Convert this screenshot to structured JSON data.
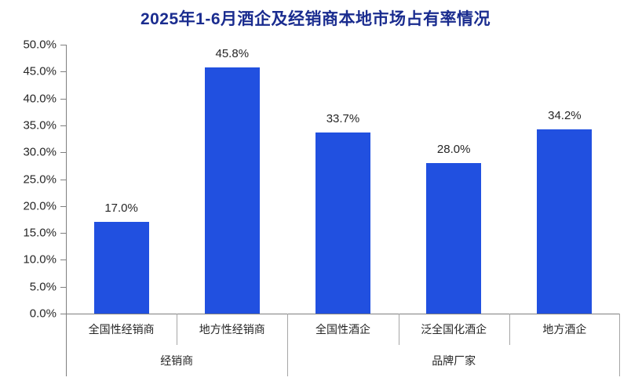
{
  "title": "2025年1-6月酒企及经销商本地市场占有率情况",
  "colors": {
    "bar": "#2150E0",
    "title": "#1A2C8F",
    "axis_line": "#7F7F7F",
    "band_line": "#A6A6A6",
    "text": "#262626"
  },
  "chart_data": {
    "type": "bar",
    "title": "2025年1-6月酒企及经销商本地市场占有率情况",
    "categories": [
      "全国性经销商",
      "地方性经销商",
      "全国性酒企",
      "泛全国化酒企",
      "地方酒企"
    ],
    "values": [
      17.0,
      45.8,
      33.7,
      28.0,
      34.2
    ],
    "data_labels": [
      "17.0%",
      "45.8%",
      "33.7%",
      "28.0%",
      "34.2%"
    ],
    "groups": [
      {
        "label": "经销商",
        "span": 2
      },
      {
        "label": "品牌厂家",
        "span": 3
      }
    ],
    "xlabel": "",
    "ylabel": "",
    "ylim": [
      0,
      50
    ],
    "ytick_step": 5,
    "ytick_labels": [
      "0.0%",
      "5.0%",
      "10.0%",
      "15.0%",
      "20.0%",
      "25.0%",
      "30.0%",
      "35.0%",
      "40.0%",
      "45.0%",
      "50.0%"
    ],
    "grid": false,
    "legend": false,
    "unit": "percent"
  }
}
